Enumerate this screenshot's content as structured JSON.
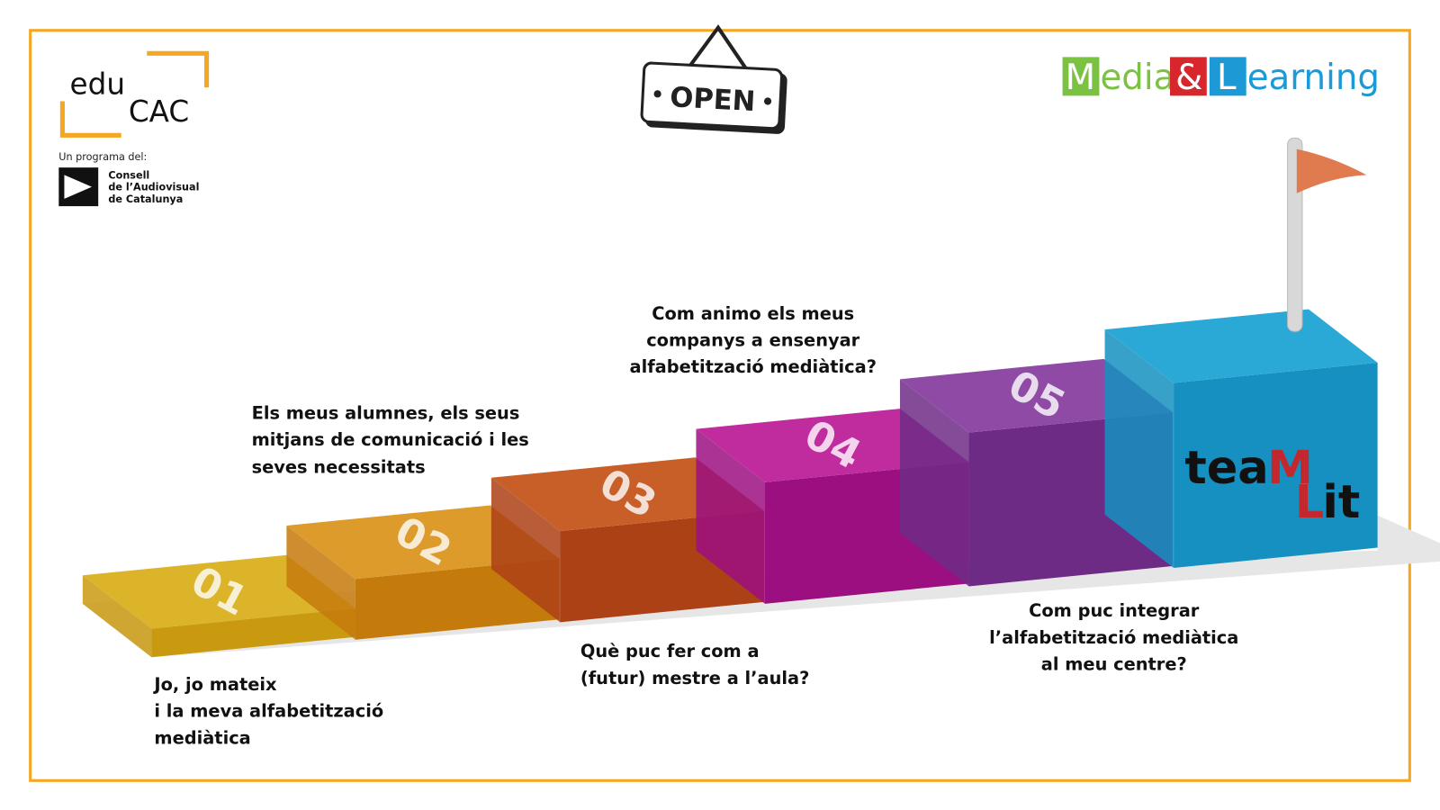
{
  "logos": {
    "educac": {
      "edu": "edu",
      "cac": "CAC",
      "program": "Un programa del:",
      "council": [
        "Consell",
        "de l’Audiovisual",
        "de Catalunya"
      ]
    },
    "open_sign": "OPEN",
    "media_learning": {
      "m": "M",
      "edia": "edia",
      "amp": "&",
      "l": "L",
      "earning": "earning"
    },
    "teamlit": {
      "tea": "tea",
      "m": "M",
      "l": "L",
      "it": "it"
    }
  },
  "steps": [
    {
      "number": "01",
      "label": [
        "Jo, jo mateix",
        "i la meva alfabetització",
        "mediàtica"
      ]
    },
    {
      "number": "02",
      "label": [
        "Els meus alumnes, els seus",
        "mitjans de comunicació i les",
        "seves necessitats"
      ]
    },
    {
      "number": "03",
      "label": [
        "Què puc fer com a",
        "(futur) mestre a l’aula?"
      ]
    },
    {
      "number": "04",
      "label": [
        "Com animo els meus",
        "companys a ensenyar",
        "alfabetització mediàtica?"
      ]
    },
    {
      "number": "05",
      "label": [
        "Com  puc integrar",
        "l’alfabetització mediàtica",
        "al meu centre?"
      ]
    }
  ]
}
